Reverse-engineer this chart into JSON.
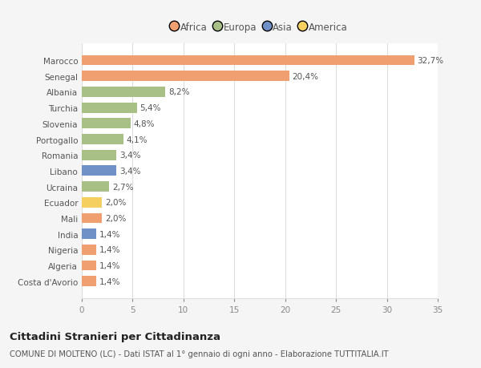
{
  "categories": [
    "Costa d'Avorio",
    "Algeria",
    "Nigeria",
    "India",
    "Mali",
    "Ecuador",
    "Ucraina",
    "Libano",
    "Romania",
    "Portogallo",
    "Slovenia",
    "Turchia",
    "Albania",
    "Senegal",
    "Marocco"
  ],
  "values": [
    1.4,
    1.4,
    1.4,
    1.4,
    2.0,
    2.0,
    2.7,
    3.4,
    3.4,
    4.1,
    4.8,
    5.4,
    8.2,
    20.4,
    32.7
  ],
  "colors": [
    "#f0a070",
    "#f0a070",
    "#f0a070",
    "#7090c8",
    "#f0a070",
    "#f5d060",
    "#a8bf85",
    "#7090c8",
    "#a8bf85",
    "#a8bf85",
    "#a8bf85",
    "#a8bf85",
    "#a8bf85",
    "#f0a070",
    "#f0a070"
  ],
  "labels": [
    "1,4%",
    "1,4%",
    "1,4%",
    "1,4%",
    "2,0%",
    "2,0%",
    "2,7%",
    "3,4%",
    "3,4%",
    "4,1%",
    "4,8%",
    "5,4%",
    "8,2%",
    "20,4%",
    "32,7%"
  ],
  "legend": [
    {
      "label": "Africa",
      "color": "#f0a070"
    },
    {
      "label": "Europa",
      "color": "#a8bf85"
    },
    {
      "label": "Asia",
      "color": "#7090c8"
    },
    {
      "label": "America",
      "color": "#f5d060"
    }
  ],
  "xlim": [
    0,
    35
  ],
  "xticks": [
    0,
    5,
    10,
    15,
    20,
    25,
    30,
    35
  ],
  "title": "Cittadini Stranieri per Cittadinanza",
  "subtitle": "COMUNE DI MOLTENO (LC) - Dati ISTAT al 1° gennaio di ogni anno - Elaborazione TUTTITALIA.IT",
  "background_color": "#f5f5f5",
  "bar_background": "#ffffff",
  "grid_color": "#dddddd"
}
